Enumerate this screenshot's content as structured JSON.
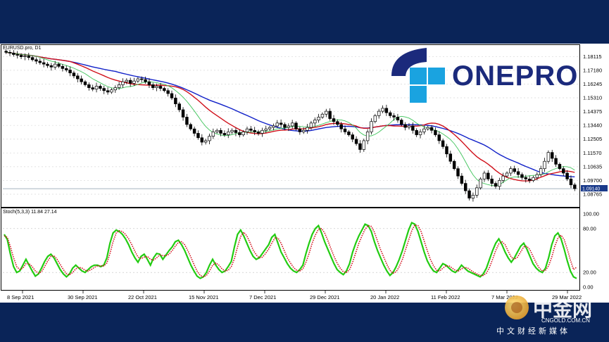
{
  "chart_data": [
    {
      "type": "candlestick",
      "title": "EURUSD.pro, D1",
      "symbol": "EURUSD.pro",
      "timeframe": "D1",
      "ylim": [
        1.08,
        1.188
      ],
      "y_ticks": [
        "1.18115",
        "1.17180",
        "1.16245",
        "1.15310",
        "1.14375",
        "1.13440",
        "1.12505",
        "1.11570",
        "1.10635",
        "1.09700",
        "1.08765"
      ],
      "current_price": "1.09140",
      "x_tick_labels": [
        "8 Sep 2021",
        "30 Sep 2021",
        "22 Oct 2021",
        "15 Nov 2021",
        "7 Dec 2021",
        "29 Dec 2021",
        "20 Jan 2022",
        "11 Feb 2022",
        "7 Mar 2022",
        "29 Mar 2022"
      ],
      "close": [
        1.184,
        1.1835,
        1.1825,
        1.182,
        1.181,
        1.1815,
        1.1805,
        1.179,
        1.178,
        1.177,
        1.176,
        1.175,
        1.174,
        1.176,
        1.1745,
        1.173,
        1.172,
        1.17,
        1.168,
        1.166,
        1.164,
        1.162,
        1.16,
        1.159,
        1.161,
        1.1595,
        1.158,
        1.157,
        1.1585,
        1.16,
        1.162,
        1.164,
        1.165,
        1.163,
        1.1645,
        1.166,
        1.1655,
        1.164,
        1.162,
        1.16,
        1.161,
        1.1595,
        1.158,
        1.156,
        1.153,
        1.149,
        1.145,
        1.14,
        1.135,
        1.132,
        1.129,
        1.126,
        1.123,
        1.124,
        1.127,
        1.13,
        1.131,
        1.129,
        1.128,
        1.13,
        1.131,
        1.1295,
        1.128,
        1.13,
        1.132,
        1.131,
        1.13,
        1.129,
        1.131,
        1.132,
        1.133,
        1.134,
        1.136,
        1.135,
        1.133,
        1.134,
        1.136,
        1.132,
        1.13,
        1.131,
        1.133,
        1.136,
        1.138,
        1.14,
        1.142,
        1.144,
        1.139,
        1.137,
        1.135,
        1.132,
        1.13,
        1.128,
        1.125,
        1.122,
        1.118,
        1.124,
        1.13,
        1.137,
        1.141,
        1.144,
        1.146,
        1.143,
        1.141,
        1.14,
        1.138,
        1.135,
        1.133,
        1.134,
        1.131,
        1.128,
        1.13,
        1.132,
        1.133,
        1.131,
        1.128,
        1.124,
        1.12,
        1.115,
        1.11,
        1.105,
        1.1,
        1.095,
        1.09,
        1.085,
        1.087,
        1.092,
        1.098,
        1.102,
        1.098,
        1.095,
        1.093,
        1.097,
        1.1,
        1.102,
        1.105,
        1.103,
        1.101,
        1.099,
        1.098,
        1.097,
        1.099,
        1.101,
        1.105,
        1.11,
        1.116,
        1.112,
        1.108,
        1.105,
        1.102,
        1.098,
        1.094,
        1.0914
      ],
      "series": [
        {
          "name": "",
          "color": "#1020c8",
          "kind": "slow-ma"
        },
        {
          "name": "",
          "color": "#d0101a",
          "kind": "mid-ma"
        },
        {
          "name": "",
          "color": "#3ec45a",
          "kind": "fast-ma"
        }
      ],
      "candle_colors": {
        "up": "#ffffff",
        "down": "#000000",
        "outline": "#000000"
      }
    },
    {
      "type": "line",
      "title": "Stoch(5,3,3) 11.84 27.14",
      "ylim": [
        0,
        100
      ],
      "y_ticks": [
        "100.00",
        "80.00",
        "20.00",
        "0.00"
      ],
      "series": [
        {
          "name": "",
          "color": "#22cc11",
          "style": "solid",
          "values": [
            72,
            65,
            45,
            28,
            20,
            22,
            30,
            38,
            30,
            22,
            15,
            18,
            26,
            35,
            42,
            45,
            40,
            32,
            24,
            18,
            14,
            18,
            26,
            30,
            26,
            22,
            20,
            24,
            28,
            30,
            30,
            28,
            30,
            40,
            60,
            74,
            78,
            76,
            72,
            66,
            58,
            48,
            40,
            34,
            42,
            45,
            38,
            30,
            40,
            46,
            45,
            38,
            44,
            50,
            55,
            62,
            64,
            58,
            50,
            40,
            30,
            22,
            15,
            12,
            14,
            20,
            30,
            38,
            30,
            24,
            20,
            22,
            28,
            35,
            55,
            72,
            78,
            70,
            60,
            50,
            42,
            38,
            40,
            46,
            52,
            58,
            68,
            72,
            60,
            48,
            40,
            32,
            26,
            22,
            20,
            24,
            30,
            46,
            60,
            72,
            80,
            84,
            74,
            62,
            52,
            42,
            32,
            24,
            20,
            17,
            22,
            32,
            48,
            60,
            70,
            78,
            86,
            84,
            76,
            62,
            50,
            40,
            30,
            22,
            16,
            20,
            28,
            38,
            50,
            64,
            78,
            88,
            86,
            76,
            62,
            48,
            36,
            28,
            22,
            20,
            26,
            32,
            30,
            26,
            22,
            20,
            24,
            30,
            26,
            22,
            20,
            18,
            16,
            14,
            18,
            26,
            38,
            50,
            60,
            66,
            58,
            48,
            40,
            34,
            40,
            48,
            56,
            60,
            52,
            42,
            32,
            26,
            22,
            20,
            26,
            40,
            58,
            70,
            74,
            66,
            52,
            36,
            22,
            14,
            11.84
          ]
        },
        {
          "name": "",
          "color": "#d0101a",
          "style": "dotted",
          "values": [
            70,
            68,
            55,
            40,
            28,
            24,
            26,
            32,
            32,
            28,
            22,
            19,
            21,
            28,
            36,
            42,
            43,
            38,
            31,
            24,
            18,
            17,
            20,
            25,
            27,
            26,
            23,
            22,
            24,
            27,
            29,
            29,
            29,
            33,
            46,
            62,
            74,
            77,
            76,
            72,
            66,
            58,
            49,
            41,
            39,
            41,
            42,
            38,
            37,
            40,
            44,
            43,
            43,
            45,
            50,
            56,
            61,
            62,
            58,
            50,
            41,
            31,
            22,
            16,
            14,
            16,
            22,
            30,
            33,
            30,
            25,
            22,
            23,
            28,
            39,
            55,
            69,
            75,
            70,
            61,
            51,
            44,
            40,
            41,
            46,
            52,
            60,
            67,
            67,
            60,
            50,
            40,
            33,
            27,
            23,
            22,
            25,
            34,
            46,
            60,
            71,
            79,
            80,
            74,
            64,
            53,
            42,
            33,
            26,
            21,
            20,
            24,
            34,
            47,
            60,
            70,
            79,
            84,
            83,
            75,
            63,
            51,
            41,
            31,
            23,
            19,
            21,
            28,
            38,
            51,
            64,
            77,
            85,
            84,
            76,
            63,
            50,
            38,
            29,
            23,
            22,
            26,
            29,
            29,
            26,
            23,
            22,
            25,
            27,
            26,
            23,
            20,
            18,
            16,
            16,
            19,
            27,
            38,
            50,
            59,
            62,
            58,
            49,
            41,
            38,
            41,
            48,
            55,
            56,
            51,
            42,
            33,
            26,
            22,
            23,
            29,
            41,
            56,
            67,
            71,
            65,
            52,
            37,
            24,
            27.14
          ]
        }
      ]
    }
  ],
  "branding": {
    "logo_text": "ONEPRO",
    "watermark_title": "中金网",
    "watermark_domain": "CNGOLD.COM.CN",
    "watermark_subtitle": "中文财经新媒体"
  }
}
